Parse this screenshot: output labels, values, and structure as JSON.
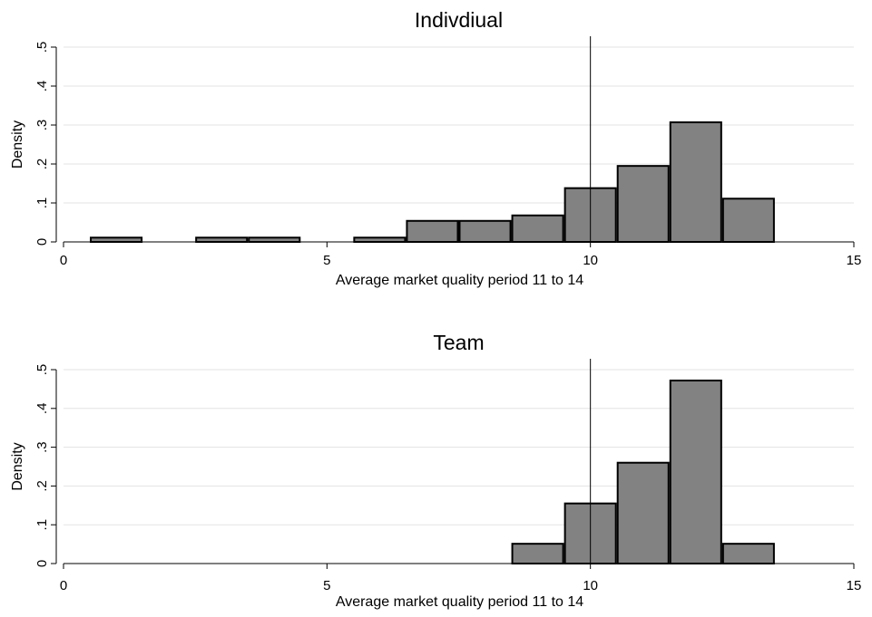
{
  "chart_data": [
    {
      "type": "bar",
      "title": "Indivdiual",
      "xlabel": "Average market quality period 11 to 14",
      "ylabel": "Density",
      "xlim": [
        0,
        15
      ],
      "ylim": [
        0,
        0.5
      ],
      "xticks": [
        0,
        5,
        10,
        15
      ],
      "xtick_labels": [
        "0",
        "5",
        "10",
        "15"
      ],
      "yticks": [
        0,
        0.1,
        0.2,
        0.3,
        0.4,
        0.5
      ],
      "ytick_labels": [
        "0",
        ".1",
        ".2",
        ".3",
        ".4",
        ".5"
      ],
      "grid": true,
      "bin_width": 1,
      "bins": [
        {
          "x0": 0.5,
          "x1": 1.5,
          "value": 0.011
        },
        {
          "x0": 2.5,
          "x1": 3.5,
          "value": 0.011
        },
        {
          "x0": 3.5,
          "x1": 4.5,
          "value": 0.011
        },
        {
          "x0": 5.5,
          "x1": 6.5,
          "value": 0.011
        },
        {
          "x0": 6.5,
          "x1": 7.5,
          "value": 0.054
        },
        {
          "x0": 7.5,
          "x1": 8.5,
          "value": 0.054
        },
        {
          "x0": 8.5,
          "x1": 9.5,
          "value": 0.068
        },
        {
          "x0": 9.5,
          "x1": 10.5,
          "value": 0.138
        },
        {
          "x0": 10.5,
          "x1": 11.5,
          "value": 0.195
        },
        {
          "x0": 11.5,
          "x1": 12.5,
          "value": 0.307
        },
        {
          "x0": 12.5,
          "x1": 13.5,
          "value": 0.111
        }
      ],
      "reference_line_x": 10,
      "bar_color": "#828282"
    },
    {
      "type": "bar",
      "title": "Team",
      "xlabel": "Average market quality period 11 to 14",
      "ylabel": "Density",
      "xlim": [
        0,
        15
      ],
      "ylim": [
        0,
        0.5
      ],
      "xticks": [
        0,
        5,
        10,
        15
      ],
      "xtick_labels": [
        "0",
        "5",
        "10",
        "15"
      ],
      "yticks": [
        0,
        0.1,
        0.2,
        0.3,
        0.4,
        0.5
      ],
      "ytick_labels": [
        "0",
        ".1",
        ".2",
        ".3",
        ".4",
        ".5"
      ],
      "grid": true,
      "bin_width": 1,
      "bins": [
        {
          "x0": 8.5,
          "x1": 9.5,
          "value": 0.051
        },
        {
          "x0": 9.5,
          "x1": 10.5,
          "value": 0.155
        },
        {
          "x0": 10.5,
          "x1": 11.5,
          "value": 0.26
        },
        {
          "x0": 11.5,
          "x1": 12.5,
          "value": 0.472
        },
        {
          "x0": 12.5,
          "x1": 13.5,
          "value": 0.051
        }
      ],
      "reference_line_x": 10,
      "bar_color": "#828282"
    }
  ]
}
